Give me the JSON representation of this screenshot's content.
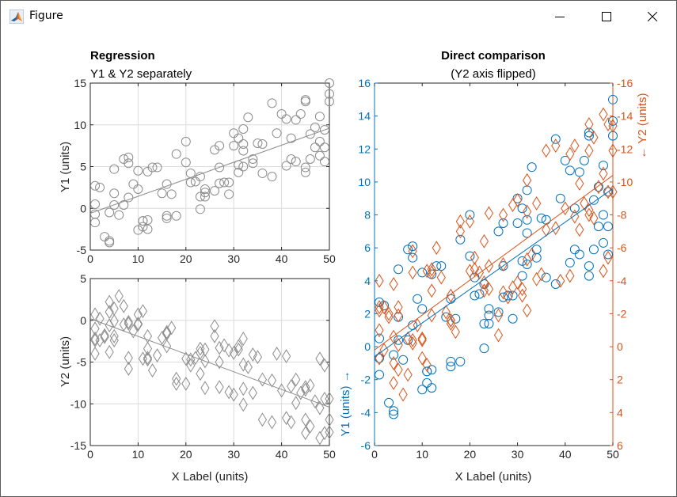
{
  "window": {
    "title": "Figure",
    "icon": "matlab-logo-icon",
    "controls": {
      "minimize": "minimize-icon",
      "maximize": "maximize-icon",
      "close": "close-icon"
    }
  },
  "colors": {
    "blue": "#0072BD",
    "orange": "#D95319",
    "gray_marker": "#8c8c8c",
    "grid": "#dcdcdc",
    "axis": "#262626"
  },
  "chart_data": [
    {
      "id": "regression-y1",
      "type": "scatter",
      "title": "Regression",
      "subtitle": "Y1 & Y2 separately",
      "xlabel": "",
      "ylabel": "Y1 (units)",
      "xlim": [
        0,
        50
      ],
      "ylim": [
        -5,
        15
      ],
      "xticks": [
        "0",
        "10",
        "20",
        "30",
        "40",
        "50"
      ],
      "yticks": [
        "-5",
        "0",
        "5",
        "10",
        "15"
      ],
      "grid": true,
      "marker": "circle",
      "fit": {
        "x": [
          0,
          50
        ],
        "y": [
          -0.6,
          9.6
        ]
      },
      "series": [
        {
          "name": "Y1",
          "x": [
            1,
            1,
            1,
            1,
            2,
            3,
            4,
            4,
            4,
            5,
            5,
            5,
            6,
            7,
            7,
            8,
            8,
            8,
            9,
            10,
            10,
            10,
            11,
            11,
            11,
            12,
            12,
            12,
            13,
            14,
            15,
            16,
            16,
            16,
            17,
            18,
            18,
            20,
            20,
            21,
            21,
            22,
            23,
            23,
            23,
            24,
            24,
            24,
            26,
            26,
            27,
            27,
            27,
            28,
            29,
            29,
            30,
            30,
            31,
            31,
            31,
            32,
            32,
            32,
            32,
            33,
            34,
            34,
            35,
            36,
            36,
            38,
            38,
            39,
            40,
            41,
            41,
            42,
            42,
            43,
            43,
            44,
            45,
            45,
            45,
            45,
            46,
            46,
            47,
            47,
            48,
            48,
            48,
            49,
            49,
            49,
            50,
            50,
            50
          ],
          "y": [
            2.7,
            0.5,
            -0.7,
            -1.7,
            2.5,
            -3.4,
            -3.9,
            -4.1,
            -0.5,
            4.7,
            1.8,
            0.4,
            -0.8,
            5.9,
            0.4,
            6.1,
            5.4,
            1.3,
            2.9,
            4.5,
            2.3,
            -2.6,
            -1.5,
            -2.2,
            -1.5,
            4.4,
            -1.4,
            -2.5,
            4.9,
            4.9,
            1.8,
            2.9,
            -0.9,
            -1.2,
            1.7,
            6.5,
            -0.9,
            8.0,
            5.5,
            4.2,
            3.1,
            3.2,
            3.8,
            1.4,
            -0.1,
            2.3,
            1.9,
            1.4,
            7.0,
            2.1,
            7.5,
            4.9,
            3.0,
            3.1,
            3.1,
            1.7,
            9.0,
            7.5,
            8.4,
            5.2,
            4.3,
            9.5,
            7.7,
            6.9,
            5.0,
            10.9,
            5.9,
            5.4,
            7.8,
            7.7,
            4.2,
            12.6,
            3.8,
            9.0,
            11.3,
            10.7,
            5.1,
            8.4,
            5.9,
            10.6,
            5.6,
            11.3,
            13.0,
            12.8,
            4.9,
            4.3,
            8.9,
            5.9,
            7.3,
            9.7,
            11.0,
            8.0,
            6.3,
            9.4,
            7.3,
            5.6,
            15.0,
            13.7,
            12.8
          ]
        }
      ]
    },
    {
      "id": "regression-y2",
      "type": "scatter",
      "title": "",
      "xlabel": "X Label (units)",
      "ylabel": "Y2 (units)",
      "xlim": [
        0,
        50
      ],
      "ylim": [
        -15,
        5
      ],
      "xticks": [
        "0",
        "10",
        "20",
        "30",
        "40",
        "50"
      ],
      "yticks": [
        "-15",
        "-10",
        "-5",
        "0",
        "5"
      ],
      "grid": true,
      "marker": "diamond",
      "fit": {
        "x": [
          0,
          50
        ],
        "y": [
          0.2,
          -10.4
        ]
      },
      "series": [
        {
          "name": "Y2",
          "x": [
            1,
            1,
            1,
            1,
            1,
            2,
            2,
            3,
            3,
            4,
            4,
            4,
            4,
            5,
            5,
            5,
            5,
            6,
            7,
            7,
            8,
            8,
            8,
            8,
            9,
            10,
            10,
            10,
            11,
            11,
            12,
            12,
            12,
            12,
            13,
            14,
            15,
            16,
            16,
            16,
            16,
            17,
            18,
            18,
            20,
            20,
            21,
            21,
            22,
            23,
            23,
            23,
            24,
            24,
            24,
            26,
            26,
            27,
            27,
            27,
            28,
            29,
            29,
            30,
            30,
            31,
            31,
            32,
            32,
            32,
            32,
            33,
            34,
            34,
            35,
            36,
            36,
            38,
            38,
            39,
            40,
            41,
            41,
            42,
            42,
            43,
            43,
            44,
            45,
            45,
            45,
            45,
            46,
            46,
            47,
            48,
            48,
            48,
            49,
            49,
            49,
            50,
            50,
            50
          ],
          "y": [
            0.7,
            -1.0,
            -2.2,
            -4.0,
            -2.4,
            0.2,
            -2.4,
            -1.8,
            -2.0,
            2.2,
            1.0,
            -3.8,
            -0.6,
            1.4,
            -0.1,
            -2.4,
            -1.9,
            2.9,
            1.7,
            -0.5,
            -0.2,
            -4.5,
            -5.8,
            -0.4,
            -1.3,
            0.7,
            -0.5,
            -0.4,
            1.1,
            -4.6,
            -1.9,
            -3.4,
            -4.7,
            -4.5,
            -6.0,
            -4.2,
            -2.1,
            -1.4,
            -1.6,
            -3.1,
            -1.6,
            -0.9,
            -7.0,
            -7.6,
            -4.6,
            -7.6,
            -4.7,
            -5.4,
            -4.5,
            -3.4,
            -6.4,
            -3.9,
            -4.9,
            -8.1,
            -3.5,
            -0.7,
            -1.9,
            -3.3,
            -5.0,
            -8.0,
            -3.0,
            -3.6,
            -8.6,
            -3.9,
            -8.9,
            -3.5,
            -3.1,
            -2.2,
            -5.3,
            -8.2,
            -10.1,
            -5.6,
            -4.1,
            -8.7,
            -4.4,
            -7.1,
            -11.9,
            -7.2,
            -12.2,
            -4.0,
            -8.4,
            -4.3,
            -11.7,
            -7.9,
            -12.2,
            -7.1,
            -9.9,
            -8.7,
            -8.0,
            -8.3,
            -11.9,
            -13.5,
            -12.7,
            -7.8,
            -9.7,
            -4.6,
            -10.5,
            -14.1,
            -5.4,
            -9.4,
            -13.5,
            -9.4,
            -11.9,
            -13.4
          ]
        }
      ]
    },
    {
      "id": "direct-comparison",
      "type": "scatter",
      "title": "Direct comparison",
      "subtitle": "(Y2 axis flipped)",
      "xlabel": "X Label (units)",
      "ylabel_left": "Y1 (units) →",
      "ylabel_right": "← Y2 (units)",
      "xlim": [
        0,
        50
      ],
      "ylim_left": [
        -6,
        16
      ],
      "ylim_right": [
        6,
        -16
      ],
      "xticks": [
        "0",
        "10",
        "20",
        "30",
        "40",
        "50"
      ],
      "yticks_left": [
        "-6",
        "-4",
        "-2",
        "0",
        "2",
        "4",
        "6",
        "8",
        "10",
        "12",
        "14",
        "16"
      ],
      "yticks_right": [
        "6",
        "4",
        "2",
        "0",
        "-2",
        "-4",
        "-6",
        "-8",
        "-10",
        "-12",
        "-14",
        "-16"
      ],
      "grid": false,
      "series": [
        {
          "name": "Y1",
          "axis": "left",
          "marker": "circle",
          "color": "#0072BD",
          "ref": "regression-y1",
          "fit": {
            "x": [
              0,
              50
            ],
            "y": [
              -0.6,
              9.6
            ]
          }
        },
        {
          "name": "Y2",
          "axis": "right",
          "marker": "diamond",
          "color": "#D95319",
          "ref": "regression-y2",
          "fit": {
            "x": [
              0,
              50
            ],
            "y": [
              0.2,
              -10.4
            ]
          }
        }
      ]
    }
  ]
}
